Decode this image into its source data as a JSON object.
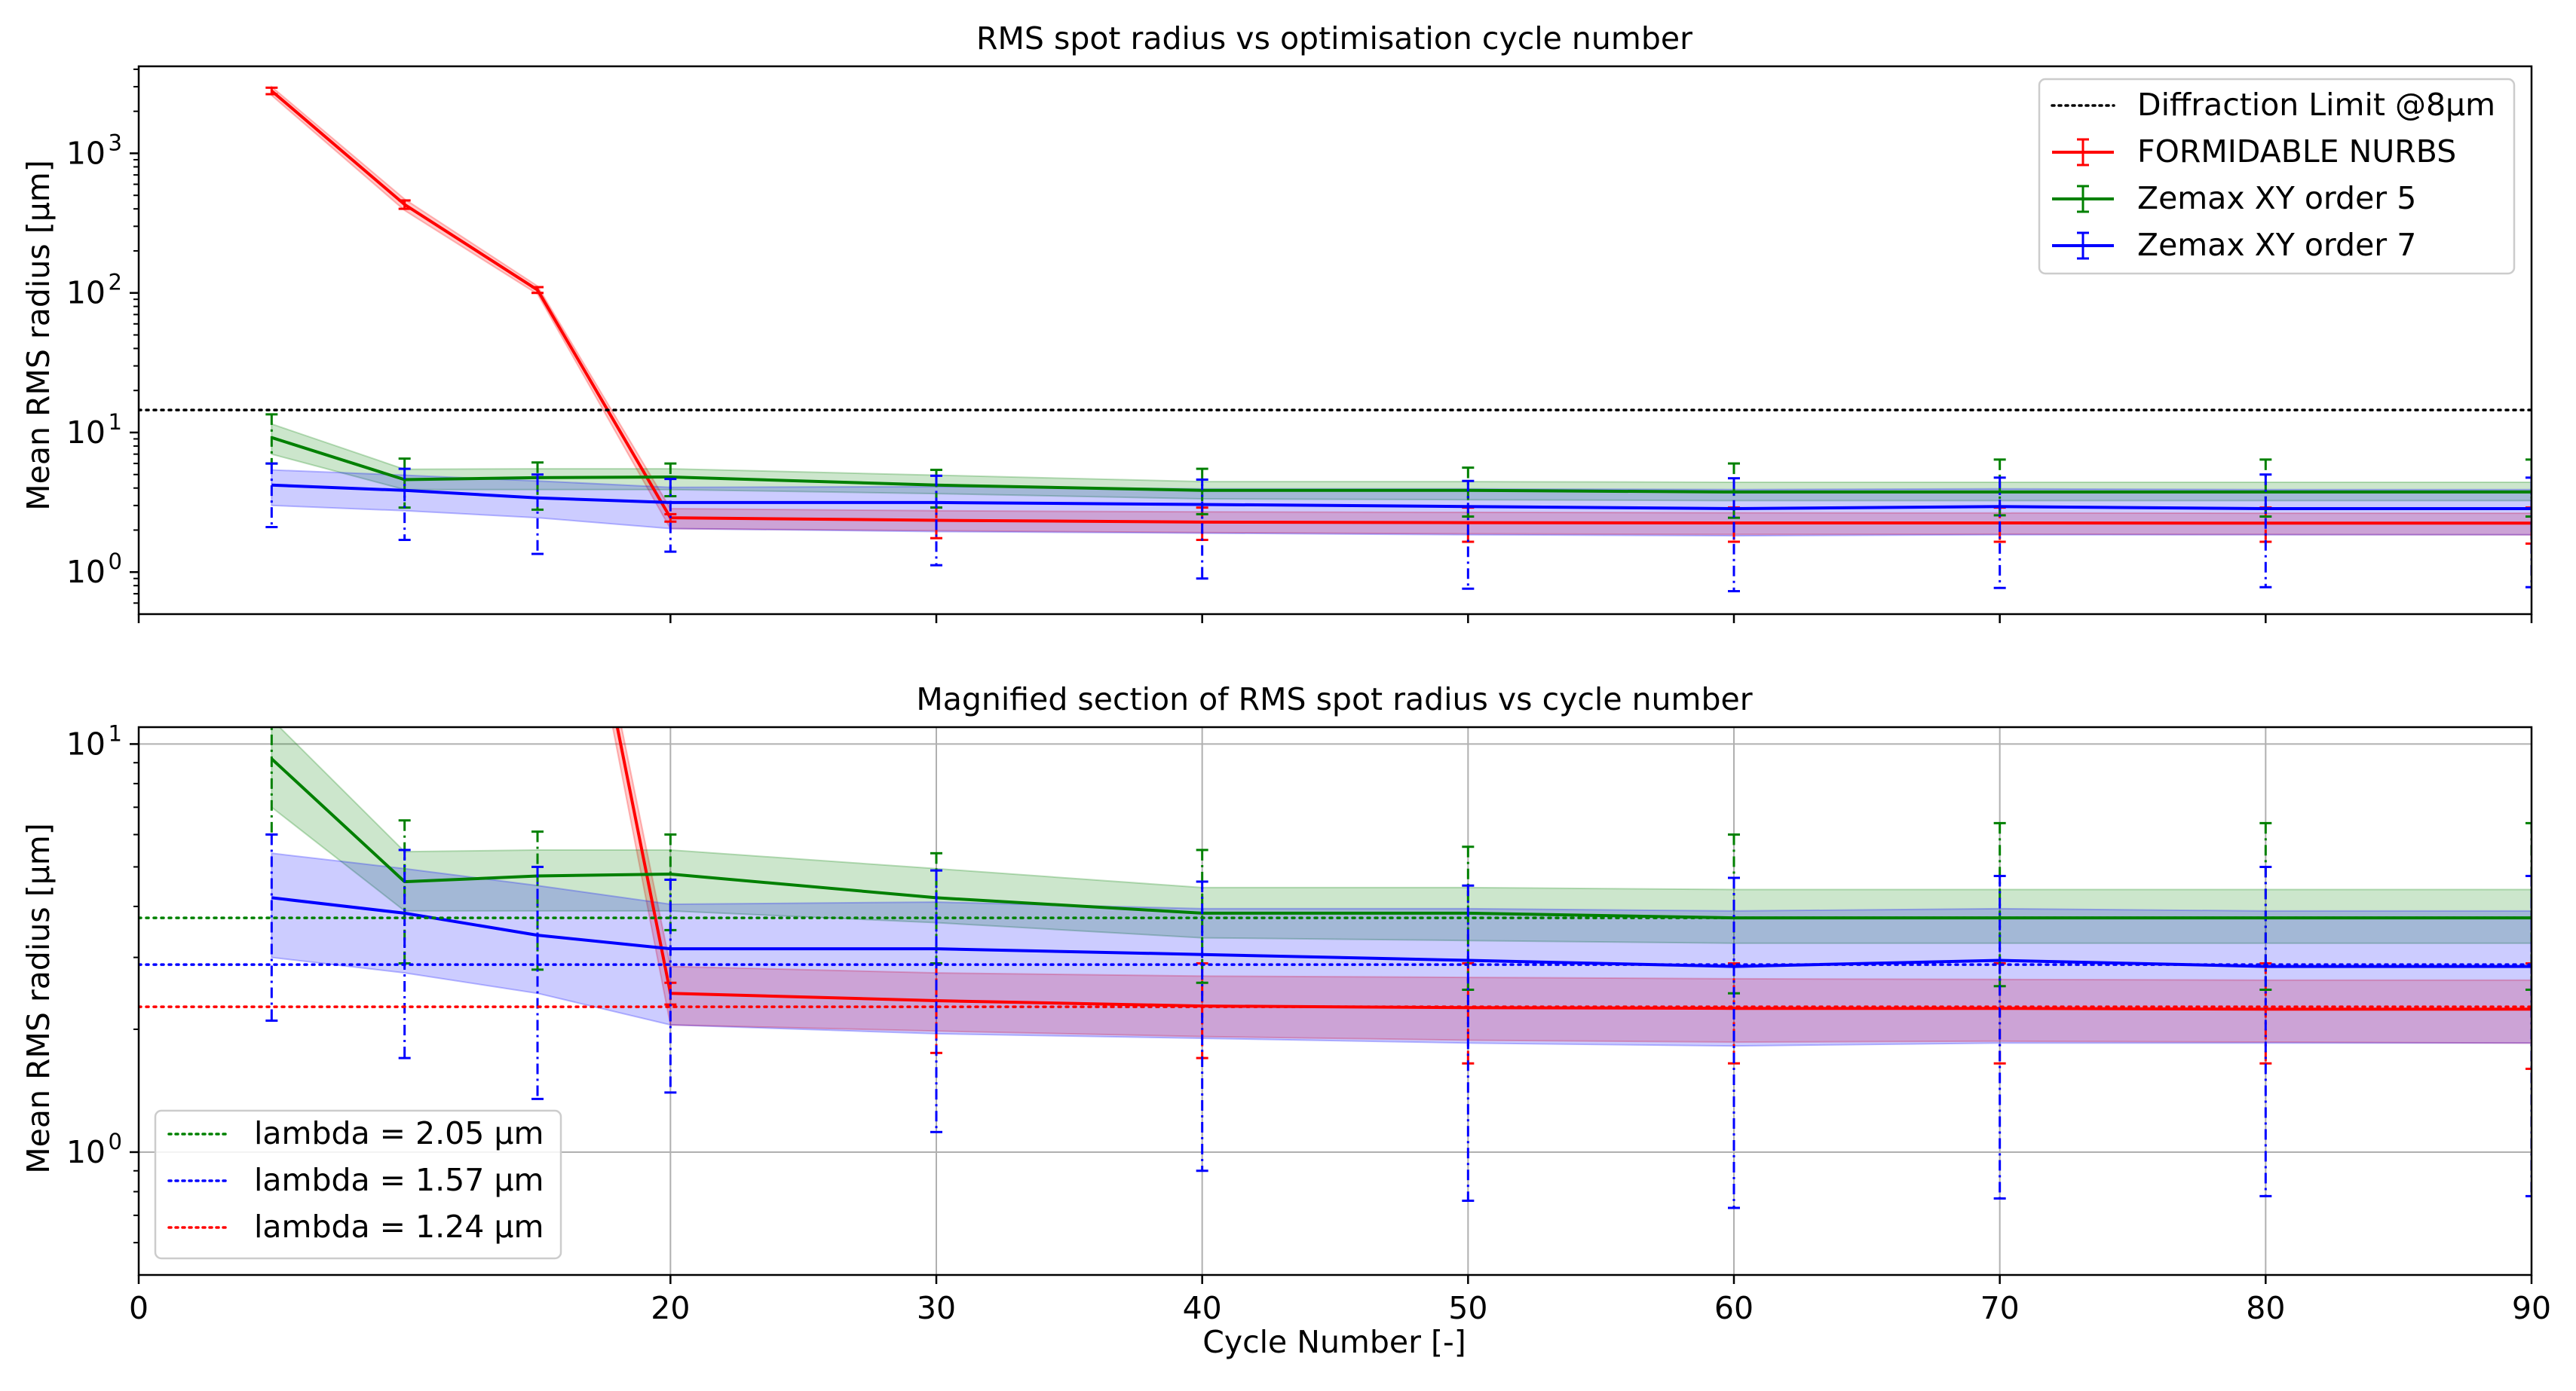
{
  "figure": {
    "background": "#ffffff"
  },
  "chart_data": [
    {
      "type": "line",
      "title": "RMS spot radius vs optimisation cycle number",
      "xlabel": "",
      "ylabel": "Mean RMS radius [µm]",
      "yscale": "log",
      "xlim": [
        0,
        90
      ],
      "ylim": [
        0.5,
        4200
      ],
      "grid": false,
      "x_ticks": [
        0,
        20,
        30,
        40,
        50,
        60,
        70,
        80,
        90
      ],
      "x_tick_labels_shown": false,
      "y_ticks": [
        1,
        10,
        100,
        1000
      ],
      "y_tick_labels": [
        {
          "base": "10",
          "exp": "0"
        },
        {
          "base": "10",
          "exp": "1"
        },
        {
          "base": "10",
          "exp": "2"
        },
        {
          "base": "10",
          "exp": "3"
        }
      ],
      "legend": {
        "placement": "top-right",
        "entries": [
          {
            "label": "Diffraction Limit @8µm",
            "color": "#000000",
            "style": "dotted"
          },
          {
            "label": "FORMIDABLE NURBS",
            "color": "#ff0000",
            "style": "errorbar"
          },
          {
            "label": "Zemax XY order 5",
            "color": "#008000",
            "style": "errorbar"
          },
          {
            "label": "Zemax XY order 7",
            "color": "#0000ff",
            "style": "errorbar"
          }
        ]
      },
      "hlines": [
        {
          "name": "Diffraction Limit @8µm",
          "y": 14.5,
          "color": "#000000",
          "style": "dotted"
        }
      ],
      "series": [
        {
          "name": "FORMIDABLE NURBS",
          "color": "#ff0000",
          "fill": "#ff0000",
          "x": [
            5,
            10,
            15,
            20,
            30,
            40,
            50,
            60,
            70,
            80,
            90
          ],
          "y": [
            2800,
            430,
            105,
            2.45,
            2.35,
            2.28,
            2.26,
            2.25,
            2.25,
            2.24,
            2.24
          ],
          "err_low": [
            2650,
            400,
            100,
            2.3,
            1.75,
            1.7,
            1.65,
            1.65,
            1.65,
            1.65,
            1.6
          ],
          "err_high": [
            2950,
            460,
            110,
            2.6,
            2.9,
            2.9,
            2.9,
            2.9,
            2.9,
            2.9,
            2.9
          ],
          "band_low": [
            2600,
            390,
            98,
            2.05,
            1.98,
            1.92,
            1.88,
            1.86,
            1.87,
            1.86,
            1.85
          ],
          "band_high": [
            3000,
            470,
            112,
            2.85,
            2.75,
            2.7,
            2.68,
            2.66,
            2.65,
            2.64,
            2.64
          ]
        },
        {
          "name": "Zemax XY order 5",
          "color": "#008000",
          "fill": "#008000",
          "x": [
            5,
            10,
            15,
            20,
            30,
            40,
            50,
            60,
            70,
            80,
            90
          ],
          "y": [
            9.2,
            4.6,
            4.75,
            4.8,
            4.2,
            3.85,
            3.85,
            3.75,
            3.75,
            3.75,
            3.75
          ],
          "err_low": [
            6.0,
            2.9,
            2.8,
            3.5,
            2.9,
            2.6,
            2.5,
            2.45,
            2.55,
            2.5,
            2.5
          ],
          "err_high": [
            13.5,
            6.5,
            6.1,
            6.0,
            5.4,
            5.5,
            5.6,
            6.0,
            6.4,
            6.4,
            6.4
          ],
          "band_low": [
            7.0,
            3.9,
            3.9,
            3.9,
            3.65,
            3.35,
            3.3,
            3.25,
            3.25,
            3.25,
            3.25
          ],
          "band_high": [
            11.5,
            5.45,
            5.5,
            5.5,
            4.95,
            4.45,
            4.45,
            4.4,
            4.4,
            4.4,
            4.4
          ]
        },
        {
          "name": "Zemax XY order 7",
          "color": "#0000ff",
          "fill": "#0000ff",
          "x": [
            5,
            10,
            15,
            20,
            30,
            40,
            50,
            60,
            70,
            80,
            90
          ],
          "y": [
            4.2,
            3.85,
            3.4,
            3.15,
            3.15,
            3.05,
            2.95,
            2.85,
            2.95,
            2.85,
            2.85
          ],
          "err_low": [
            2.1,
            1.7,
            1.35,
            1.4,
            1.12,
            0.9,
            0.76,
            0.73,
            0.77,
            0.78,
            0.78
          ],
          "err_high": [
            6.0,
            5.5,
            5.0,
            4.65,
            4.9,
            4.6,
            4.5,
            4.7,
            4.75,
            5.0,
            4.75
          ],
          "band_low": [
            3.0,
            2.75,
            2.45,
            2.05,
            1.95,
            1.9,
            1.85,
            1.82,
            1.85,
            1.85,
            1.85
          ],
          "band_high": [
            5.4,
            4.95,
            4.5,
            4.05,
            4.1,
            3.95,
            3.95,
            3.9,
            3.95,
            3.9,
            3.9
          ]
        }
      ]
    },
    {
      "type": "line",
      "title": "Magnified section of RMS spot radius vs cycle number",
      "xlabel": "Cycle Number [-]",
      "ylabel": "Mean RMS radius [µm]",
      "yscale": "log",
      "xlim": [
        0,
        90
      ],
      "ylim": [
        0.5,
        11
      ],
      "grid": true,
      "x_ticks": [
        0,
        20,
        30,
        40,
        50,
        60,
        70,
        80,
        90
      ],
      "x_tick_labels": [
        "0",
        "20",
        "30",
        "40",
        "50",
        "60",
        "70",
        "80",
        "90"
      ],
      "y_ticks": [
        1,
        10
      ],
      "y_tick_labels": [
        {
          "base": "10",
          "exp": "0"
        },
        {
          "base": "10",
          "exp": "1"
        }
      ],
      "legend": {
        "placement": "bottom-left",
        "entries": [
          {
            "label": "lambda = 2.05 µm",
            "color": "#008000",
            "style": "dotted"
          },
          {
            "label": "lambda = 1.57 µm",
            "color": "#0000ff",
            "style": "dotted"
          },
          {
            "label": "lambda = 1.24 µm",
            "color": "#ff0000",
            "style": "dotted"
          }
        ]
      },
      "hlines": [
        {
          "name": "lambda = 2.05 µm",
          "y": 3.75,
          "color": "#008000",
          "style": "dotted"
        },
        {
          "name": "lambda = 1.57 µm",
          "y": 2.88,
          "color": "#0000ff",
          "style": "dotted"
        },
        {
          "name": "lambda = 1.24 µm",
          "y": 2.27,
          "color": "#ff0000",
          "style": "dotted"
        }
      ],
      "series_ref": "same as chart 0 series"
    }
  ]
}
